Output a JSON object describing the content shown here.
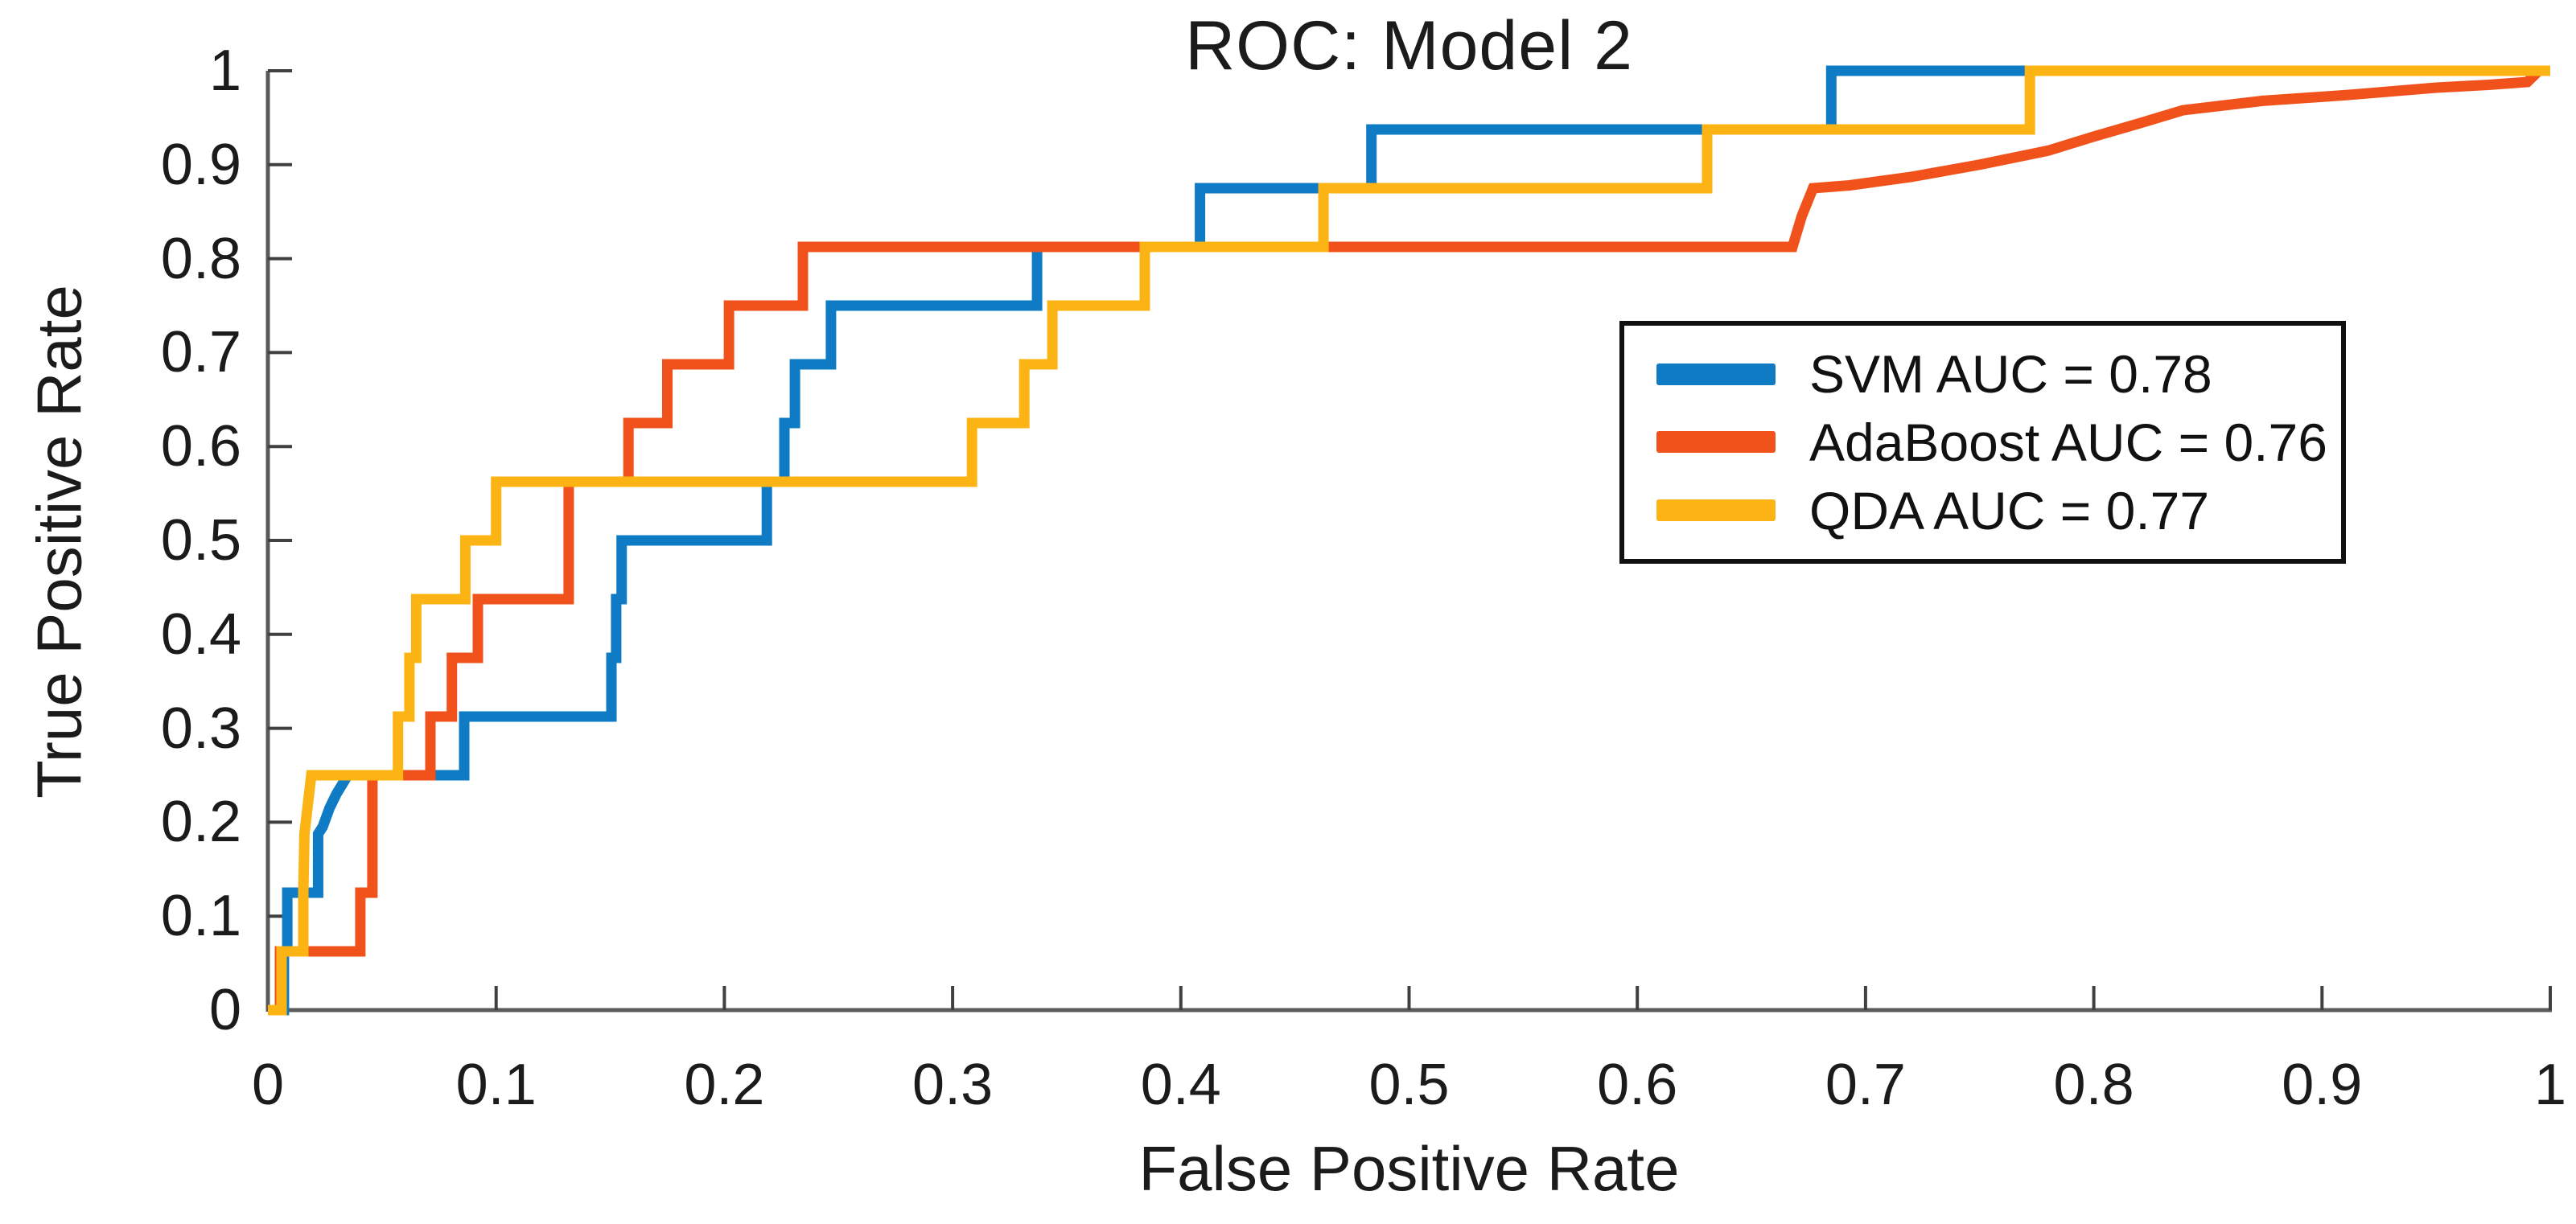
{
  "title": "ROC: Model 2",
  "axes": {
    "x_label": "False Positive Rate",
    "y_label": "True Positive Rate",
    "x_ticks": {
      "values": [
        0,
        0.1,
        0.2,
        0.3,
        0.4,
        0.5,
        0.6,
        0.7,
        0.8,
        0.9,
        1
      ],
      "labels": [
        "0",
        "0.1",
        "0.2",
        "0.3",
        "0.4",
        "0.5",
        "0.6",
        "0.7",
        "0.8",
        "0.9",
        "1"
      ]
    },
    "y_ticks": {
      "values": [
        0,
        0.1,
        0.2,
        0.3,
        0.4,
        0.5,
        0.6,
        0.7,
        0.8,
        0.9,
        1
      ],
      "labels": [
        "0",
        "0.1",
        "0.2",
        "0.3",
        "0.4",
        "0.5",
        "0.6",
        "0.7",
        "0.8",
        "0.9",
        "1"
      ]
    },
    "axis_color": "#595959",
    "tick_color": "#404040"
  },
  "legend": {
    "items": [
      {
        "label": "SVM AUC = 0.78",
        "color": "#0E7BC4"
      },
      {
        "label": "AdaBoost AUC = 0.76",
        "color": "#F1511B"
      },
      {
        "label": "QDA AUC = 0.77",
        "color": "#FCB415"
      }
    ]
  },
  "chart_data": {
    "type": "line",
    "subtype": "roc-step",
    "title": "ROC: Model 2",
    "xlabel": "False Positive Rate",
    "ylabel": "True Positive Rate",
    "xlim": [
      0,
      1
    ],
    "ylim": [
      0,
      1
    ],
    "grid": false,
    "legend_position": "right-middle",
    "series": [
      {
        "name": "SVM",
        "auc": 0.78,
        "color": "#0E7BC4",
        "points": [
          [
            0,
            0
          ],
          [
            0.007,
            0
          ],
          [
            0.007,
            0.0625
          ],
          [
            0.0085,
            0.0625
          ],
          [
            0.0085,
            0.125
          ],
          [
            0.022,
            0.125
          ],
          [
            0.022,
            0.1875
          ],
          [
            0.024,
            0.195
          ],
          [
            0.027,
            0.215
          ],
          [
            0.03,
            0.23
          ],
          [
            0.035,
            0.25
          ],
          [
            0.086,
            0.25
          ],
          [
            0.086,
            0.3125
          ],
          [
            0.1505,
            0.3125
          ],
          [
            0.1505,
            0.375
          ],
          [
            0.1526,
            0.375
          ],
          [
            0.1526,
            0.4375
          ],
          [
            0.155,
            0.4375
          ],
          [
            0.155,
            0.5
          ],
          [
            0.2186,
            0.5
          ],
          [
            0.2186,
            0.5625
          ],
          [
            0.2263,
            0.5625
          ],
          [
            0.2263,
            0.625
          ],
          [
            0.2309,
            0.625
          ],
          [
            0.2309,
            0.6875
          ],
          [
            0.2467,
            0.6875
          ],
          [
            0.2467,
            0.75
          ],
          [
            0.337,
            0.75
          ],
          [
            0.337,
            0.8125
          ],
          [
            0.4084,
            0.8125
          ],
          [
            0.4084,
            0.875
          ],
          [
            0.4835,
            0.875
          ],
          [
            0.4835,
            0.9375
          ],
          [
            0.685,
            0.9375
          ],
          [
            0.685,
            1
          ],
          [
            1,
            1
          ]
        ]
      },
      {
        "name": "AdaBoost",
        "auc": 0.76,
        "color": "#F1511B",
        "points": [
          [
            0,
            0
          ],
          [
            0.0053,
            0
          ],
          [
            0.0053,
            0.0625
          ],
          [
            0.0405,
            0.0625
          ],
          [
            0.0405,
            0.125
          ],
          [
            0.0458,
            0.125
          ],
          [
            0.0458,
            0.25
          ],
          [
            0.0712,
            0.25
          ],
          [
            0.0712,
            0.3125
          ],
          [
            0.0806,
            0.3125
          ],
          [
            0.0806,
            0.375
          ],
          [
            0.092,
            0.375
          ],
          [
            0.092,
            0.4375
          ],
          [
            0.1318,
            0.4375
          ],
          [
            0.1318,
            0.5625
          ],
          [
            0.158,
            0.5625
          ],
          [
            0.158,
            0.625
          ],
          [
            0.175,
            0.625
          ],
          [
            0.175,
            0.6875
          ],
          [
            0.202,
            0.6875
          ],
          [
            0.202,
            0.75
          ],
          [
            0.2344,
            0.75
          ],
          [
            0.2344,
            0.8125
          ],
          [
            0.668,
            0.8125
          ],
          [
            0.672,
            0.845
          ],
          [
            0.677,
            0.875
          ],
          [
            0.693,
            0.878
          ],
          [
            0.72,
            0.887
          ],
          [
            0.75,
            0.9
          ],
          [
            0.78,
            0.915
          ],
          [
            0.8,
            0.93
          ],
          [
            0.82,
            0.944
          ],
          [
            0.839,
            0.958
          ],
          [
            0.874,
            0.968
          ],
          [
            0.91,
            0.974
          ],
          [
            0.95,
            0.982
          ],
          [
            0.973,
            0.985
          ],
          [
            0.99,
            0.988
          ],
          [
            0.995,
            1
          ],
          [
            1,
            1
          ]
        ]
      },
      {
        "name": "QDA",
        "auc": 0.77,
        "color": "#FCB415",
        "points": [
          [
            0,
            0
          ],
          [
            0.006,
            0
          ],
          [
            0.006,
            0.0625
          ],
          [
            0.0155,
            0.0625
          ],
          [
            0.0155,
            0.125
          ],
          [
            0.016,
            0.1875
          ],
          [
            0.019,
            0.25
          ],
          [
            0.057,
            0.25
          ],
          [
            0.057,
            0.3125
          ],
          [
            0.062,
            0.3125
          ],
          [
            0.062,
            0.375
          ],
          [
            0.065,
            0.375
          ],
          [
            0.065,
            0.4375
          ],
          [
            0.0865,
            0.4375
          ],
          [
            0.0865,
            0.5
          ],
          [
            0.1,
            0.5
          ],
          [
            0.1,
            0.5625
          ],
          [
            0.3085,
            0.5625
          ],
          [
            0.3085,
            0.625
          ],
          [
            0.3314,
            0.625
          ],
          [
            0.3314,
            0.6875
          ],
          [
            0.3437,
            0.6875
          ],
          [
            0.3437,
            0.75
          ],
          [
            0.3842,
            0.75
          ],
          [
            0.3842,
            0.8125
          ],
          [
            0.4625,
            0.8125
          ],
          [
            0.4625,
            0.875
          ],
          [
            0.6306,
            0.875
          ],
          [
            0.6306,
            0.9375
          ],
          [
            0.772,
            0.9375
          ],
          [
            0.772,
            1
          ],
          [
            1,
            1
          ]
        ]
      }
    ]
  }
}
